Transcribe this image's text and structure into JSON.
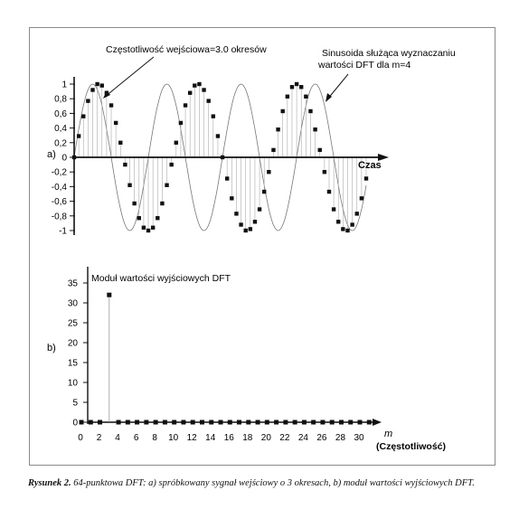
{
  "figure": {
    "caption_label": "Rysunek 2.",
    "caption_text": "64-punktowa DFT: a) spróbkowany sygnał wejściowy o 3 okresach, b) moduł wartości wyjściowych DFT."
  },
  "chart_data": [
    {
      "type": "scatter",
      "panel_label": "a)",
      "xlabel": "Czas",
      "ylabel": "",
      "ylim": [
        -1,
        1
      ],
      "yticks": [
        1,
        0.8,
        0.6,
        0.4,
        0.2,
        0,
        -0.2,
        -0.4,
        -0.6,
        -0.8,
        -1
      ],
      "ytick_labels": [
        "1",
        "0,8",
        "0,6",
        "0,4",
        "0,2",
        "0",
        "-0,2",
        "-0,4",
        "-0,6",
        "-0,8",
        "-1"
      ],
      "n_samples": 64,
      "input_cycles": 3,
      "reference_cycles": 4,
      "annotations": [
        {
          "text": "Częstotliwość wejściowa=3.0 okresów"
        },
        {
          "text": "Sinusoida służąca wyznaczaniu"
        },
        {
          "text": "wartości DFT dla m=4"
        }
      ],
      "series": [
        {
          "values": [
            0,
            0.29,
            0.56,
            0.77,
            0.92,
            1.0,
            0.98,
            0.88,
            0.71,
            0.47,
            0.2,
            -0.1,
            -0.38,
            -0.63,
            -0.83,
            -0.96,
            -1.0,
            -0.96,
            -0.83,
            -0.63,
            -0.38,
            -0.1,
            0.2,
            0.47,
            0.71,
            0.88,
            0.98,
            1.0,
            0.92,
            0.77,
            0.56,
            0.29,
            0,
            -0.29,
            -0.56,
            -0.77,
            -0.92,
            -1.0,
            -0.98,
            -0.88,
            -0.71,
            -0.47,
            -0.2,
            0.1,
            0.38,
            0.63,
            0.83,
            0.96,
            1.0,
            0.96,
            0.83,
            0.63,
            0.38,
            0.1,
            -0.2,
            -0.47,
            -0.71,
            -0.88,
            -0.98,
            -1.0,
            -0.92,
            -0.77,
            -0.56,
            -0.29
          ]
        }
      ]
    },
    {
      "type": "bar",
      "panel_label": "b)",
      "title": "Moduł wartości wyjściowych DFT",
      "xlabel": "m",
      "xlabel2": "(Częstotliwość)",
      "ylim": [
        0,
        35
      ],
      "yticks": [
        0,
        5,
        10,
        15,
        20,
        25,
        30,
        35
      ],
      "xticks": [
        0,
        2,
        4,
        6,
        8,
        10,
        12,
        14,
        16,
        18,
        20,
        22,
        24,
        26,
        28,
        30
      ],
      "x": [
        0,
        1,
        2,
        3,
        4,
        5,
        6,
        7,
        8,
        9,
        10,
        11,
        12,
        13,
        14,
        15,
        16,
        17,
        18,
        19,
        20,
        21,
        22,
        23,
        24,
        25,
        26,
        27,
        28,
        29,
        30,
        31
      ],
      "values": [
        0,
        0,
        0,
        32,
        0,
        0,
        0,
        0,
        0,
        0,
        0,
        0,
        0,
        0,
        0,
        0,
        0,
        0,
        0,
        0,
        0,
        0,
        0,
        0,
        0,
        0,
        0,
        0,
        0,
        0,
        0,
        0
      ]
    }
  ]
}
